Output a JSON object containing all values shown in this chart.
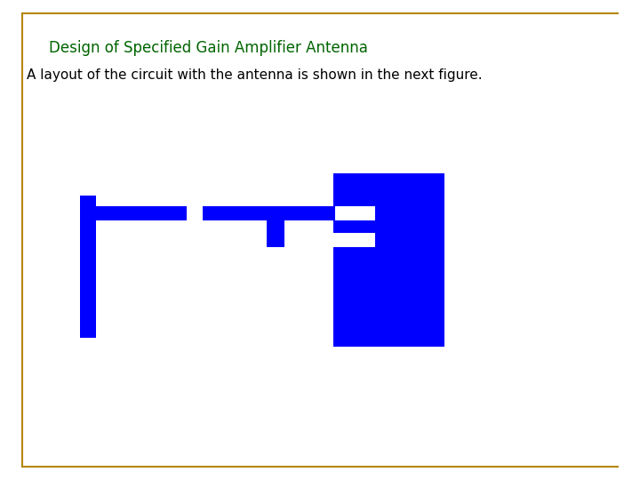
{
  "title": "Design of Specified Gain Amplifier Antenna",
  "subtitle": "A layout of the circuit with the antenna is shown in the next figure.",
  "title_color": "#006400",
  "subtitle_color": "#000000",
  "bg_color": "#ffffff",
  "border_color": "#b8860b",
  "shape_color": "#0000ff",
  "title_fontsize": 12,
  "subtitle_fontsize": 11,
  "border_linewidth": 1.5
}
